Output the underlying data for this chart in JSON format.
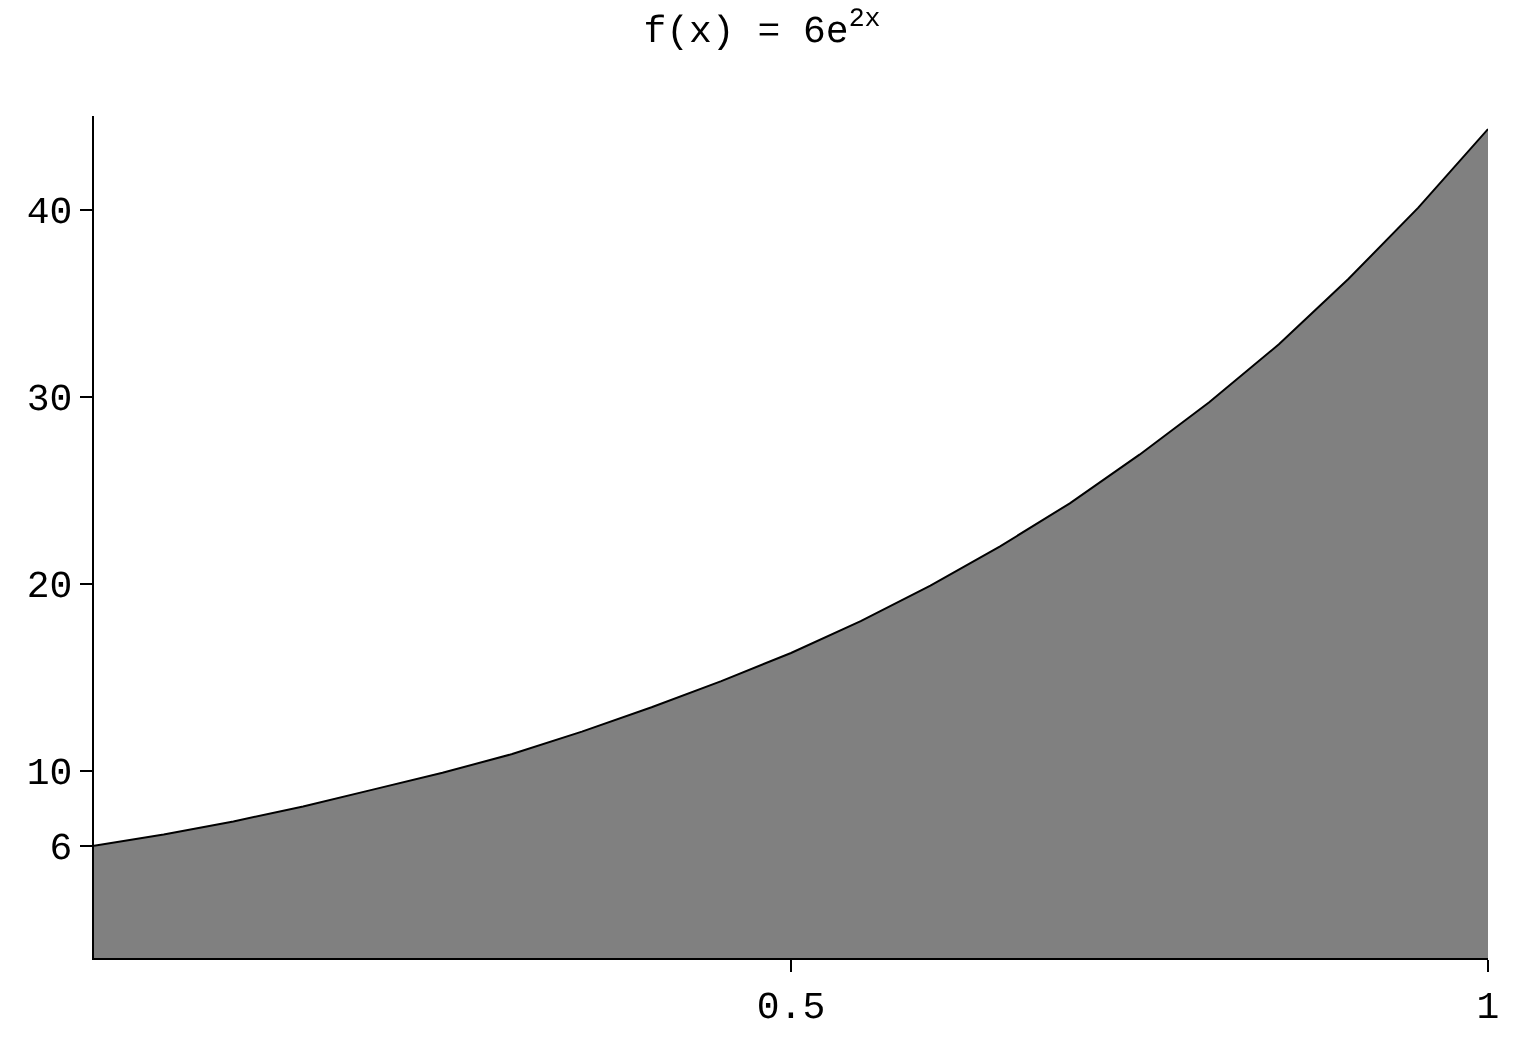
{
  "chart_data": {
    "type": "area",
    "title": "f(x) = 6e$^{2x}$",
    "x": [
      0,
      0.05,
      0.1,
      0.15,
      0.2,
      0.25,
      0.3,
      0.35,
      0.4,
      0.45,
      0.5,
      0.55,
      0.6,
      0.65,
      0.7,
      0.75,
      0.8,
      0.85,
      0.9,
      0.95,
      1
    ],
    "series": [
      {
        "color": "#808080",
        "values": [
          6.0,
          6.6,
          7.3,
          8.1,
          9.0,
          9.9,
          10.9,
          12.1,
          13.4,
          14.8,
          16.3,
          18.0,
          19.9,
          22.0,
          24.3,
          26.9,
          29.7,
          32.8,
          36.3,
          40.1,
          44.3
        ]
      }
    ],
    "xlim": [
      0,
      1
    ],
    "xticks": [
      0.5,
      1
    ],
    "ylim": [
      0,
      45
    ],
    "yticks": [
      6,
      10,
      20,
      30,
      40
    ],
    "grid": false
  }
}
